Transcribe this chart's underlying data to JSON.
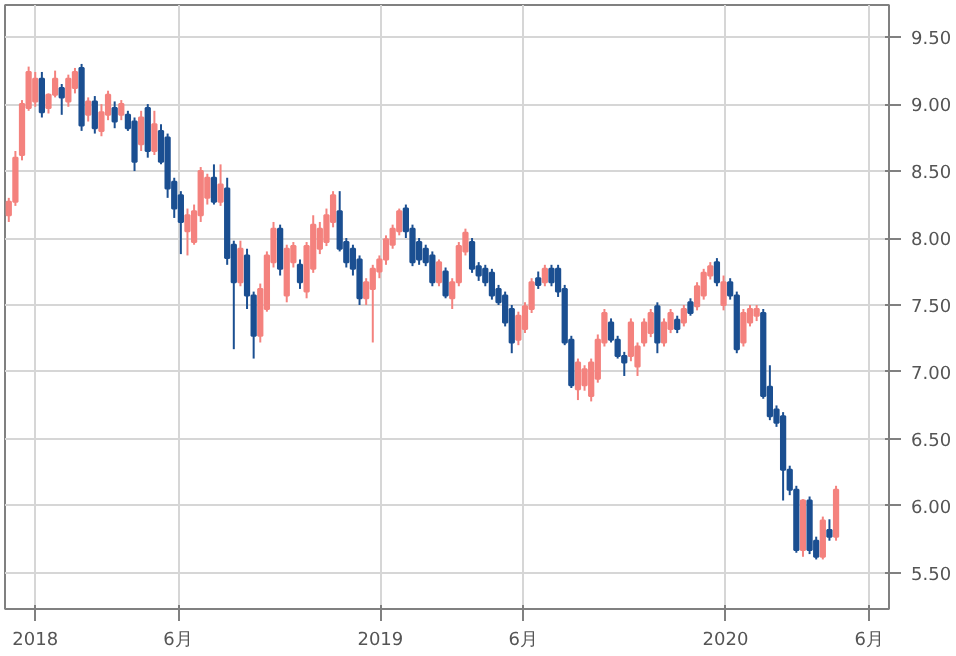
{
  "chart_data": {
    "type": "candlestick",
    "x": [
      "2017-12-04",
      "2017-12-11",
      "2017-12-18",
      "2017-12-25",
      "2018-01-01",
      "2018-01-08",
      "2018-01-15",
      "2018-01-22",
      "2018-01-29",
      "2018-02-05",
      "2018-02-12",
      "2018-02-19",
      "2018-02-26",
      "2018-03-05",
      "2018-03-12",
      "2018-03-19",
      "2018-03-26",
      "2018-04-02",
      "2018-04-09",
      "2018-04-16",
      "2018-04-23",
      "2018-04-30",
      "2018-05-07",
      "2018-05-14",
      "2018-05-21",
      "2018-05-28",
      "2018-06-04",
      "2018-06-11",
      "2018-06-18",
      "2018-06-25",
      "2018-07-02",
      "2018-07-09",
      "2018-07-16",
      "2018-07-23",
      "2018-07-30",
      "2018-08-06",
      "2018-08-13",
      "2018-08-20",
      "2018-08-27",
      "2018-09-03",
      "2018-09-10",
      "2018-09-17",
      "2018-09-24",
      "2018-10-01",
      "2018-10-08",
      "2018-10-15",
      "2018-10-22",
      "2018-10-29",
      "2018-11-05",
      "2018-11-12",
      "2018-11-19",
      "2018-11-26",
      "2018-12-03",
      "2018-12-10",
      "2018-12-17",
      "2018-12-24",
      "2018-12-31",
      "2019-01-07",
      "2019-01-14",
      "2019-01-21",
      "2019-01-28",
      "2019-02-04",
      "2019-02-11",
      "2019-02-18",
      "2019-02-25",
      "2019-03-04",
      "2019-03-11",
      "2019-03-18",
      "2019-03-25",
      "2019-04-01",
      "2019-04-08",
      "2019-04-15",
      "2019-04-22",
      "2019-04-29",
      "2019-05-06",
      "2019-05-13",
      "2019-05-20",
      "2019-05-27",
      "2019-06-03",
      "2019-06-10",
      "2019-06-17",
      "2019-06-24",
      "2019-07-01",
      "2019-07-08",
      "2019-07-15",
      "2019-07-22",
      "2019-07-29",
      "2019-08-05",
      "2019-08-12",
      "2019-08-19",
      "2019-08-26",
      "2019-09-02",
      "2019-09-09",
      "2019-09-16",
      "2019-09-23",
      "2019-09-30",
      "2019-10-07",
      "2019-10-14",
      "2019-10-21",
      "2019-10-28",
      "2019-11-04",
      "2019-11-11",
      "2019-11-18",
      "2019-11-25",
      "2019-12-02",
      "2019-12-09",
      "2019-12-16",
      "2019-12-23",
      "2019-12-30",
      "2020-01-06",
      "2020-01-13",
      "2020-01-20",
      "2020-01-27",
      "2020-02-03",
      "2020-02-10",
      "2020-02-17",
      "2020-02-24",
      "2020-03-02",
      "2020-03-09",
      "2020-03-16",
      "2020-03-23",
      "2020-03-30",
      "2020-04-06",
      "2020-04-13",
      "2020-04-20",
      "2020-04-27"
    ],
    "ohlc": [
      [
        8.17,
        8.3,
        8.12,
        8.27
      ],
      [
        8.27,
        8.65,
        8.24,
        8.6
      ],
      [
        8.62,
        9.03,
        8.58,
        9.0
      ],
      [
        8.97,
        9.28,
        8.95,
        9.24
      ],
      [
        9.02,
        9.24,
        8.98,
        9.19
      ],
      [
        9.19,
        9.24,
        8.9,
        8.94
      ],
      [
        8.97,
        9.08,
        8.93,
        9.07
      ],
      [
        9.07,
        9.25,
        9.05,
        9.19
      ],
      [
        9.12,
        9.15,
        8.92,
        9.05
      ],
      [
        9.02,
        9.22,
        8.98,
        9.19
      ],
      [
        9.12,
        9.27,
        9.08,
        9.24
      ],
      [
        9.27,
        9.3,
        8.8,
        8.84
      ],
      [
        8.92,
        9.05,
        8.87,
        9.02
      ],
      [
        9.02,
        9.06,
        8.78,
        8.82
      ],
      [
        8.8,
        9.0,
        8.76,
        8.94
      ],
      [
        8.92,
        9.1,
        8.88,
        9.07
      ],
      [
        8.97,
        9.02,
        8.82,
        8.87
      ],
      [
        8.92,
        9.03,
        8.88,
        9.0
      ],
      [
        8.92,
        8.95,
        8.8,
        8.82
      ],
      [
        8.87,
        8.9,
        8.5,
        8.57
      ],
      [
        8.7,
        8.95,
        8.65,
        8.9
      ],
      [
        8.97,
        9.0,
        8.6,
        8.65
      ],
      [
        8.65,
        8.95,
        8.62,
        8.85
      ],
      [
        8.8,
        8.85,
        8.55,
        8.57
      ],
      [
        8.75,
        8.78,
        8.3,
        8.37
      ],
      [
        8.42,
        8.45,
        8.15,
        8.22
      ],
      [
        8.32,
        8.35,
        7.88,
        8.12
      ],
      [
        8.05,
        8.22,
        7.87,
        8.17
      ],
      [
        7.97,
        8.25,
        7.95,
        8.2
      ],
      [
        8.17,
        8.53,
        8.12,
        8.5
      ],
      [
        8.3,
        8.48,
        8.25,
        8.45
      ],
      [
        8.45,
        8.55,
        8.25,
        8.27
      ],
      [
        8.27,
        8.55,
        8.24,
        8.4
      ],
      [
        8.37,
        8.45,
        7.8,
        7.85
      ],
      [
        7.95,
        7.98,
        7.17,
        7.67
      ],
      [
        7.67,
        7.98,
        7.64,
        7.92
      ],
      [
        7.87,
        7.92,
        7.47,
        7.57
      ],
      [
        7.57,
        7.6,
        7.1,
        7.27
      ],
      [
        7.27,
        7.66,
        7.22,
        7.62
      ],
      [
        7.47,
        7.9,
        7.45,
        7.87
      ],
      [
        7.82,
        8.12,
        7.78,
        8.07
      ],
      [
        8.07,
        8.1,
        7.72,
        7.77
      ],
      [
        7.57,
        7.95,
        7.52,
        7.92
      ],
      [
        7.82,
        7.97,
        7.78,
        7.94
      ],
      [
        7.8,
        7.84,
        7.62,
        7.67
      ],
      [
        7.6,
        7.97,
        7.55,
        7.94
      ],
      [
        7.77,
        8.17,
        7.74,
        8.1
      ],
      [
        7.92,
        8.12,
        7.88,
        8.07
      ],
      [
        7.97,
        8.22,
        7.94,
        8.17
      ],
      [
        8.12,
        8.35,
        8.08,
        8.32
      ],
      [
        8.2,
        8.35,
        7.9,
        7.92
      ],
      [
        7.97,
        8.0,
        7.78,
        7.82
      ],
      [
        7.92,
        7.95,
        7.72,
        7.77
      ],
      [
        7.84,
        7.87,
        7.5,
        7.55
      ],
      [
        7.55,
        7.7,
        7.5,
        7.67
      ],
      [
        7.62,
        7.8,
        7.22,
        7.77
      ],
      [
        7.75,
        7.87,
        7.7,
        7.84
      ],
      [
        7.84,
        8.02,
        7.8,
        7.99
      ],
      [
        7.95,
        8.1,
        7.92,
        8.07
      ],
      [
        8.05,
        8.22,
        8.02,
        8.2
      ],
      [
        8.22,
        8.25,
        8.0,
        8.05
      ],
      [
        8.07,
        8.1,
        7.79,
        7.82
      ],
      [
        7.97,
        8.0,
        7.8,
        7.84
      ],
      [
        7.92,
        7.95,
        7.79,
        7.82
      ],
      [
        7.87,
        7.9,
        7.64,
        7.67
      ],
      [
        7.67,
        7.84,
        7.64,
        7.82
      ],
      [
        7.75,
        7.78,
        7.55,
        7.57
      ],
      [
        7.55,
        7.7,
        7.47,
        7.67
      ],
      [
        7.67,
        7.97,
        7.64,
        7.94
      ],
      [
        7.9,
        8.07,
        7.87,
        8.04
      ],
      [
        7.97,
        8.0,
        7.74,
        7.77
      ],
      [
        7.79,
        7.82,
        7.68,
        7.72
      ],
      [
        7.77,
        7.8,
        7.64,
        7.67
      ],
      [
        7.74,
        7.77,
        7.54,
        7.57
      ],
      [
        7.62,
        7.65,
        7.5,
        7.52
      ],
      [
        7.57,
        7.6,
        7.34,
        7.37
      ],
      [
        7.47,
        7.5,
        7.14,
        7.22
      ],
      [
        7.24,
        7.45,
        7.2,
        7.42
      ],
      [
        7.32,
        7.52,
        7.29,
        7.49
      ],
      [
        7.47,
        7.7,
        7.44,
        7.67
      ],
      [
        7.7,
        7.75,
        7.62,
        7.65
      ],
      [
        7.67,
        7.8,
        7.64,
        7.77
      ],
      [
        7.77,
        7.8,
        7.64,
        7.67
      ],
      [
        7.77,
        7.8,
        7.56,
        7.6
      ],
      [
        7.62,
        7.65,
        7.2,
        7.22
      ],
      [
        7.24,
        7.27,
        6.88,
        6.9
      ],
      [
        6.87,
        7.1,
        6.79,
        7.07
      ],
      [
        6.9,
        7.05,
        6.86,
        7.02
      ],
      [
        6.82,
        7.1,
        6.78,
        7.07
      ],
      [
        6.95,
        7.28,
        6.92,
        7.24
      ],
      [
        7.22,
        7.47,
        7.19,
        7.44
      ],
      [
        7.37,
        7.4,
        7.22,
        7.24
      ],
      [
        7.24,
        7.27,
        7.1,
        7.12
      ],
      [
        7.12,
        7.15,
        6.97,
        7.07
      ],
      [
        7.12,
        7.4,
        7.08,
        7.37
      ],
      [
        7.04,
        7.22,
        6.97,
        7.19
      ],
      [
        7.22,
        7.4,
        7.19,
        7.37
      ],
      [
        7.29,
        7.47,
        7.26,
        7.44
      ],
      [
        7.49,
        7.52,
        7.14,
        7.22
      ],
      [
        7.22,
        7.4,
        7.19,
        7.37
      ],
      [
        7.32,
        7.47,
        7.29,
        7.44
      ],
      [
        7.39,
        7.42,
        7.29,
        7.32
      ],
      [
        7.37,
        7.5,
        7.34,
        7.47
      ],
      [
        7.52,
        7.55,
        7.42,
        7.44
      ],
      [
        7.49,
        7.67,
        7.46,
        7.64
      ],
      [
        7.57,
        7.77,
        7.54,
        7.74
      ],
      [
        7.72,
        7.82,
        7.69,
        7.79
      ],
      [
        7.82,
        7.85,
        7.64,
        7.67
      ],
      [
        7.5,
        7.72,
        7.46,
        7.67
      ],
      [
        7.67,
        7.7,
        7.54,
        7.57
      ],
      [
        7.57,
        7.6,
        7.14,
        7.17
      ],
      [
        7.22,
        7.47,
        7.19,
        7.44
      ],
      [
        7.37,
        7.5,
        7.34,
        7.47
      ],
      [
        7.42,
        7.5,
        7.38,
        7.47
      ],
      [
        7.44,
        7.47,
        6.8,
        6.82
      ],
      [
        6.89,
        7.05,
        6.64,
        6.67
      ],
      [
        6.72,
        6.75,
        6.59,
        6.62
      ],
      [
        6.67,
        6.7,
        6.04,
        6.27
      ],
      [
        6.27,
        6.3,
        6.08,
        6.12
      ],
      [
        6.12,
        6.15,
        5.65,
        5.67
      ],
      [
        5.67,
        6.05,
        5.62,
        6.04
      ],
      [
        6.04,
        6.07,
        5.64,
        5.67
      ],
      [
        5.74,
        5.77,
        5.6,
        5.62
      ],
      [
        5.62,
        5.92,
        5.6,
        5.89
      ],
      [
        5.82,
        5.9,
        5.74,
        5.77
      ],
      [
        5.77,
        6.15,
        5.74,
        6.12
      ]
    ],
    "colors": [
      "#f4827e",
      "#f4827e",
      "#f4827e",
      "#f4827e",
      "#f4827e",
      "#1b4f91",
      "#f4827e",
      "#f4827e",
      "#1b4f91",
      "#f4827e",
      "#f4827e",
      "#1b4f91",
      "#f4827e",
      "#1b4f91",
      "#f4827e",
      "#f4827e",
      "#1b4f91",
      "#f4827e",
      "#1b4f91",
      "#1b4f91",
      "#f4827e",
      "#1b4f91",
      "#f4827e",
      "#1b4f91",
      "#1b4f91",
      "#1b4f91",
      "#1b4f91",
      "#f4827e",
      "#f4827e",
      "#f4827e",
      "#f4827e",
      "#1b4f91",
      "#f4827e",
      "#1b4f91",
      "#1b4f91",
      "#f4827e",
      "#1b4f91",
      "#1b4f91",
      "#f4827e",
      "#f4827e",
      "#f4827e",
      "#1b4f91",
      "#f4827e",
      "#f4827e",
      "#1b4f91",
      "#f4827e",
      "#f4827e",
      "#f4827e",
      "#f4827e",
      "#f4827e",
      "#1b4f91",
      "#1b4f91",
      "#1b4f91",
      "#1b4f91",
      "#f4827e",
      "#f4827e",
      "#f4827e",
      "#f4827e",
      "#f4827e",
      "#f4827e",
      "#1b4f91",
      "#1b4f91",
      "#1b4f91",
      "#1b4f91",
      "#1b4f91",
      "#f4827e",
      "#1b4f91",
      "#f4827e",
      "#f4827e",
      "#f4827e",
      "#1b4f91",
      "#1b4f91",
      "#1b4f91",
      "#1b4f91",
      "#1b4f91",
      "#1b4f91",
      "#1b4f91",
      "#f4827e",
      "#f4827e",
      "#f4827e",
      "#1b4f91",
      "#f4827e",
      "#1b4f91",
      "#1b4f91",
      "#1b4f91",
      "#1b4f91",
      "#f4827e",
      "#f4827e",
      "#f4827e",
      "#f4827e",
      "#f4827e",
      "#1b4f91",
      "#1b4f91",
      "#1b4f91",
      "#f4827e",
      "#f4827e",
      "#f4827e",
      "#f4827e",
      "#1b4f91",
      "#f4827e",
      "#f4827e",
      "#1b4f91",
      "#f4827e",
      "#1b4f91",
      "#f4827e",
      "#f4827e",
      "#f4827e",
      "#1b4f91",
      "#f4827e",
      "#1b4f91",
      "#1b4f91",
      "#f4827e",
      "#f4827e",
      "#f4827e",
      "#1b4f91",
      "#1b4f91",
      "#1b4f91",
      "#1b4f91",
      "#1b4f91",
      "#1b4f91",
      "#f4827e",
      "#1b4f91",
      "#1b4f91",
      "#f4827e",
      "#1b4f91",
      "#f4827e"
    ],
    "xlim": [
      "2017-11-30",
      "2020-06-22"
    ],
    "xticks": [
      {
        "value": "2018-01-01",
        "label": "2018"
      },
      {
        "value": "2018-06-01",
        "label": "6月"
      },
      {
        "value": "2019-01-01",
        "label": "2019"
      },
      {
        "value": "2019-06-01",
        "label": "6月"
      },
      {
        "value": "2020-01-01",
        "label": "2020"
      },
      {
        "value": "2020-06-01",
        "label": "6月"
      }
    ],
    "ylim": [
      5.23,
      9.74
    ],
    "yticks": [
      {
        "value": 5.5,
        "label": "5.50"
      },
      {
        "value": 6,
        "label": "6.00"
      },
      {
        "value": 6.5,
        "label": "6.50"
      },
      {
        "value": 7,
        "label": "7.00"
      },
      {
        "value": 7.5,
        "label": "7.50"
      },
      {
        "value": 8,
        "label": "8.00"
      },
      {
        "value": 8.5,
        "label": "8.50"
      },
      {
        "value": 9,
        "label": "9.00"
      },
      {
        "value": 9.5,
        "label": "9.50"
      }
    ],
    "grid": true
  }
}
